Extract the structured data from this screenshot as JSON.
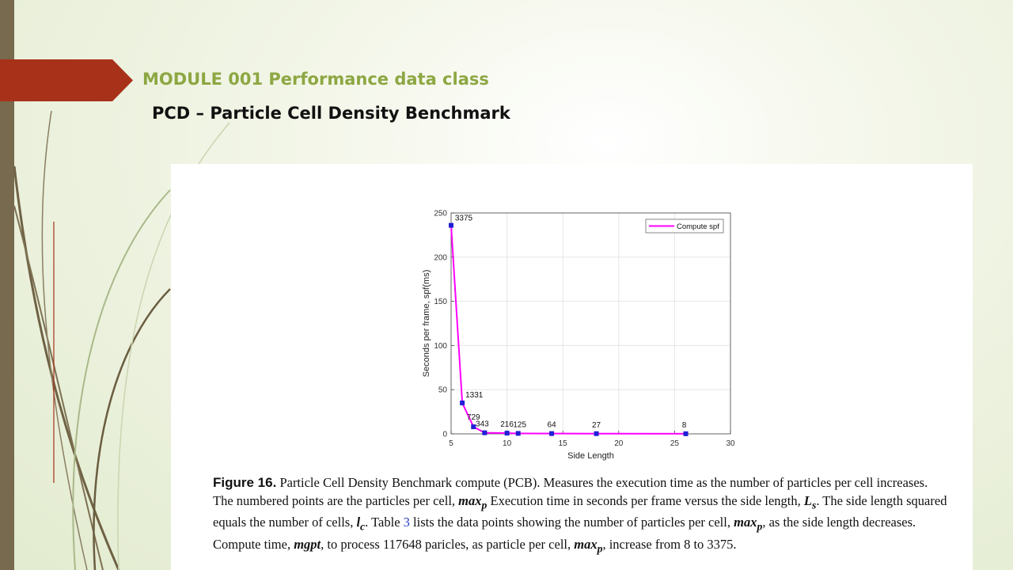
{
  "slide": {
    "module_title": "MODULE 001 Performance data class",
    "subtitle": "PCD – Particle Cell Density Benchmark",
    "accent_color": "#a8311a",
    "title_color": "#8da742"
  },
  "chart_data": {
    "type": "line",
    "title": "",
    "xlabel": "Side Length",
    "ylabel": "Seconds per frame, spf(ms)",
    "xlim": [
      5,
      30
    ],
    "ylim": [
      0,
      250
    ],
    "xticks": [
      5,
      10,
      15,
      20,
      25,
      30
    ],
    "yticks": [
      0,
      50,
      100,
      150,
      200,
      250
    ],
    "grid": true,
    "legend_position": "top-right",
    "series": [
      {
        "name": "Compute spf",
        "color": "#ff00ff",
        "marker_color": "#1f1fd6",
        "x": [
          5,
          6,
          7,
          8,
          10,
          11,
          14,
          18,
          26
        ],
        "y": [
          236,
          35,
          8,
          1.2,
          0.8,
          0.5,
          0.3,
          0.2,
          0.1
        ],
        "labels": [
          "3375",
          "1331",
          "729",
          "343",
          "216",
          "125",
          "64",
          "27",
          "8"
        ]
      }
    ]
  },
  "caption": {
    "figure_label": "Figure 16.",
    "p1": " Particle Cell Density Benchmark compute (PCB). Measures the execution time as the number of particles per cell increases. The numbered points are the particles per cell, ",
    "sym_max1": "max",
    "sub_p1": "p",
    "p2": " Execution time in seconds per frame versus the side length, ",
    "sym_L": "L",
    "sub_s": "s",
    "p3": ". The side length squared equals the number of cells, ",
    "sym_l": "l",
    "sub_c": "c",
    "p4": ". Table ",
    "table_ref": "3",
    "p5": " lists the data points showing the number of particles per cell, ",
    "sym_max2": "max",
    "sub_p2": "p",
    "p6": ", as the side length decreases. Compute time, ",
    "sym_mgpt": "mgpt",
    "p7": ", to process 117648 paricles, as particle per cell, ",
    "sym_max3": "max",
    "sub_p3": "p",
    "p8": ", increase from 8 to 3375."
  }
}
